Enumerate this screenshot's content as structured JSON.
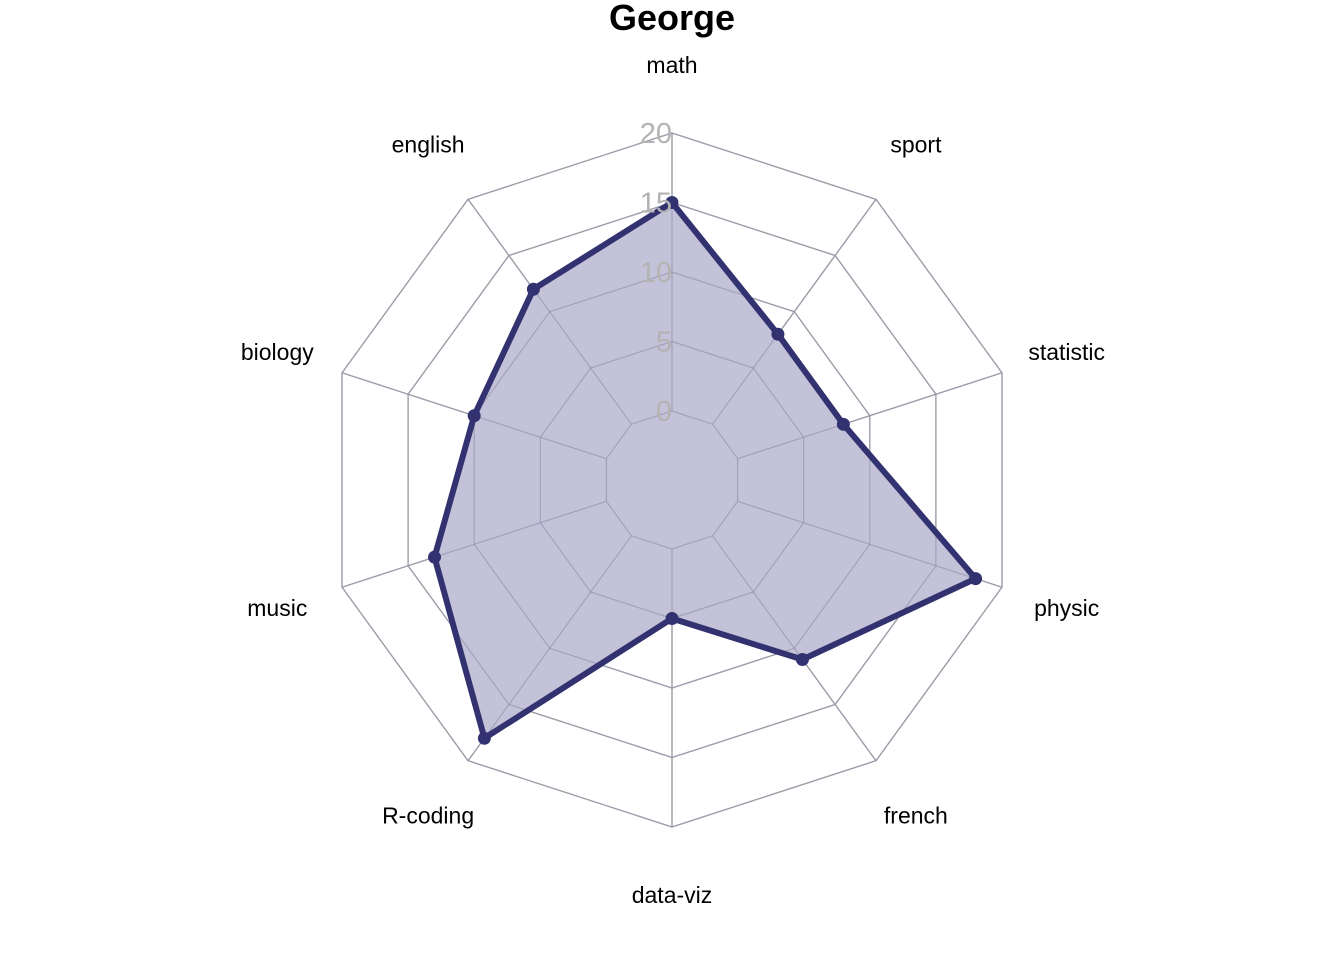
{
  "chart_data": {
    "type": "radar",
    "title": "George",
    "categories": [
      "math",
      "sport",
      "statistic",
      "physic",
      "french",
      "data-viz",
      "R-coding",
      "music",
      "biology",
      "english"
    ],
    "series": [
      {
        "values": [
          15,
          8,
          8,
          18,
          11,
          5,
          18,
          13,
          10,
          12
        ]
      }
    ],
    "rlim": [
      0,
      20
    ],
    "ticks": [
      "0",
      "5",
      "10",
      "15",
      "20"
    ],
    "grid": true,
    "colors": {
      "line": "#333271",
      "fill": "#c2c1d8",
      "grid": "#b0b0b0",
      "tick_text": "#b3b3b3"
    }
  }
}
